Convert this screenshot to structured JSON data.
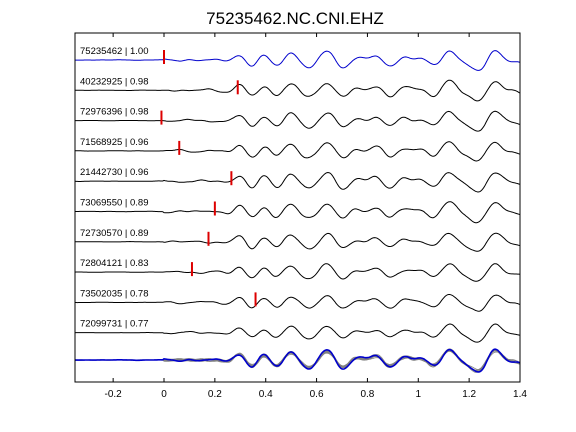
{
  "chart_data": {
    "type": "line",
    "title": "75235462.NC.CNI.EHZ",
    "xlabel": "",
    "ylabel": "",
    "xlim": [
      -0.35,
      1.4
    ],
    "xticks": [
      -0.2,
      0,
      0.2,
      0.4,
      0.6,
      0.8,
      1,
      1.2,
      1.4
    ],
    "grid": false,
    "colors": {
      "reference": "#0000cc",
      "trace": "#000000",
      "pick": "#dd0000",
      "stack": "#808080"
    },
    "series": [
      {
        "name": "75235462 | 1.00",
        "pick": 0.0,
        "amp": 1.0,
        "noise": 1
      },
      {
        "name": "40232925 | 0.98",
        "pick": 0.29,
        "amp": 0.95,
        "noise": 2
      },
      {
        "name": "72976396 | 0.98",
        "pick": -0.01,
        "amp": 0.9,
        "noise": 3
      },
      {
        "name": "71568925 | 0.96",
        "pick": 0.06,
        "amp": 0.95,
        "noise": 4
      },
      {
        "name": "21442730 | 0.96",
        "pick": 0.265,
        "amp": 1.0,
        "noise": 5
      },
      {
        "name": "73069550 | 0.89",
        "pick": 0.2,
        "amp": 0.95,
        "noise": 6
      },
      {
        "name": "72730570 | 0.89",
        "pick": 0.175,
        "amp": 0.9,
        "noise": 7
      },
      {
        "name": "72804121 | 0.83",
        "pick": 0.11,
        "amp": 0.9,
        "noise": 8
      },
      {
        "name": "73502035 | 0.78",
        "pick": 0.36,
        "amp": 0.85,
        "noise": 9
      },
      {
        "name": "72099731 | 0.77",
        "pick": null,
        "amp": 0.8,
        "noise": 10
      }
    ]
  }
}
